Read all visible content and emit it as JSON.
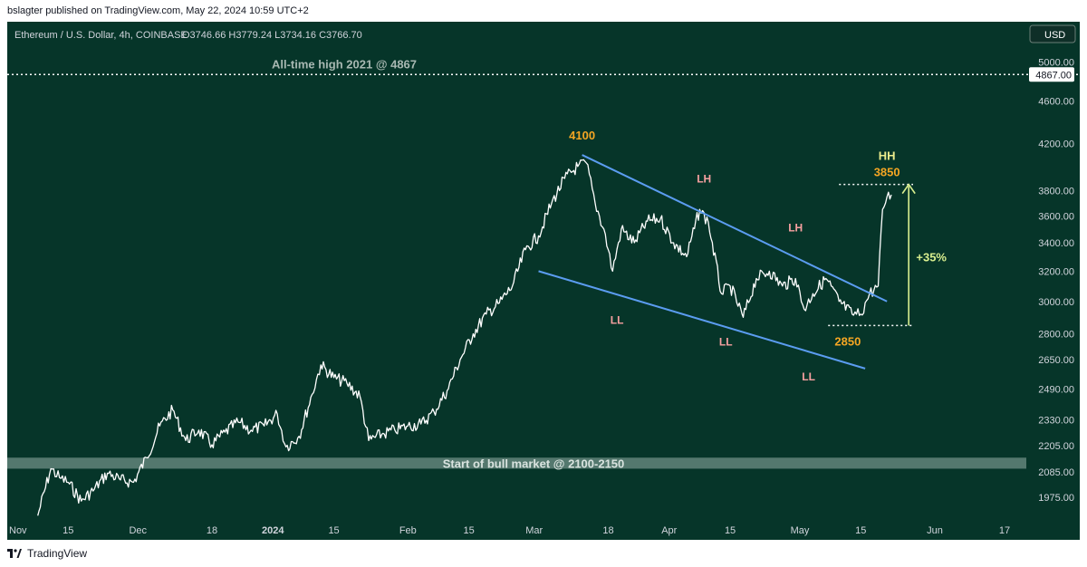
{
  "publisher": "bslagter published on TradingView.com, May 22, 2024 10:59 UTC+2",
  "header": {
    "symbol": "Ethereum / U.S. Dollar, 4h, COINBASE",
    "ohlc": "O3746.66  H3779.24  L3734.16  C3766.70",
    "currency": "USD"
  },
  "footer": {
    "brand": "TradingView"
  },
  "colors": {
    "background": "#063529",
    "candles": "#ffffff",
    "trendline": "#5b9cf0",
    "price_label": "#f5a623",
    "swing_label": "#f6a0a0",
    "hh_label": "#ecec8c",
    "measure": "#d9ef8f",
    "zone": "#6f8f85"
  },
  "chart_data": {
    "type": "line",
    "title": "Ethereum / U.S. Dollar, 4h, COINBASE",
    "y_scale": "log",
    "ylim": [
      1890,
      5200
    ],
    "y_ticks": [
      "5000.00",
      "4600.00",
      "4200.00",
      "3800.00",
      "3600.00",
      "3400.00",
      "3200.00",
      "3000.00",
      "2800.00",
      "2650.00",
      "2490.00",
      "2330.00",
      "2205.00",
      "2085.00",
      "1975.00"
    ],
    "x_ticks": [
      "Nov",
      "15",
      "Dec",
      "18",
      "2024",
      "15",
      "Feb",
      "15",
      "Mar",
      "18",
      "Apr",
      "15",
      "May",
      "15",
      "Jun",
      "17"
    ],
    "x_range": [
      "2023-11-01",
      "2024-06-22"
    ],
    "series": [
      {
        "points": [
          [
            "2023-11-08",
            1900
          ],
          [
            "2023-11-11",
            2100
          ],
          [
            "2023-11-13",
            2060
          ],
          [
            "2023-11-15",
            2040
          ],
          [
            "2023-11-18",
            1960
          ],
          [
            "2023-11-21",
            2010
          ],
          [
            "2023-11-24",
            2080
          ],
          [
            "2023-11-27",
            2050
          ],
          [
            "2023-11-30",
            2040
          ],
          [
            "2023-12-03",
            2150
          ],
          [
            "2023-12-06",
            2300
          ],
          [
            "2023-12-09",
            2380
          ],
          [
            "2023-12-12",
            2230
          ],
          [
            "2023-12-15",
            2280
          ],
          [
            "2023-12-18",
            2210
          ],
          [
            "2023-12-21",
            2270
          ],
          [
            "2023-12-24",
            2320
          ],
          [
            "2023-12-27",
            2280
          ],
          [
            "2023-12-30",
            2300
          ],
          [
            "2024-01-02",
            2360
          ],
          [
            "2024-01-04",
            2200
          ],
          [
            "2024-01-07",
            2250
          ],
          [
            "2024-01-10",
            2460
          ],
          [
            "2024-01-12",
            2620
          ],
          [
            "2024-01-15",
            2550
          ],
          [
            "2024-01-18",
            2520
          ],
          [
            "2024-01-21",
            2450
          ],
          [
            "2024-01-23",
            2230
          ],
          [
            "2024-01-26",
            2260
          ],
          [
            "2024-01-29",
            2280
          ],
          [
            "2024-02-01",
            2300
          ],
          [
            "2024-02-04",
            2310
          ],
          [
            "2024-02-07",
            2370
          ],
          [
            "2024-02-10",
            2480
          ],
          [
            "2024-02-13",
            2650
          ],
          [
            "2024-02-16",
            2800
          ],
          [
            "2024-02-19",
            2920
          ],
          [
            "2024-02-22",
            2990
          ],
          [
            "2024-02-25",
            3100
          ],
          [
            "2024-02-28",
            3350
          ],
          [
            "2024-03-02",
            3450
          ],
          [
            "2024-03-05",
            3700
          ],
          [
            "2024-03-08",
            3900
          ],
          [
            "2024-03-11",
            4000
          ],
          [
            "2024-03-13",
            4030
          ],
          [
            "2024-03-15",
            3700
          ],
          [
            "2024-03-17",
            3500
          ],
          [
            "2024-03-19",
            3200
          ],
          [
            "2024-03-21",
            3500
          ],
          [
            "2024-03-24",
            3400
          ],
          [
            "2024-03-27",
            3560
          ],
          [
            "2024-03-30",
            3580
          ],
          [
            "2024-04-02",
            3400
          ],
          [
            "2024-04-05",
            3300
          ],
          [
            "2024-04-08",
            3650
          ],
          [
            "2024-04-10",
            3550
          ],
          [
            "2024-04-13",
            3050
          ],
          [
            "2024-04-15",
            3100
          ],
          [
            "2024-04-18",
            2900
          ],
          [
            "2024-04-21",
            3150
          ],
          [
            "2024-04-24",
            3200
          ],
          [
            "2024-04-27",
            3100
          ],
          [
            "2024-04-30",
            3150
          ],
          [
            "2024-05-02",
            2950
          ],
          [
            "2024-05-04",
            3050
          ],
          [
            "2024-05-07",
            3150
          ],
          [
            "2024-05-10",
            3000
          ],
          [
            "2024-05-13",
            2920
          ],
          [
            "2024-05-15",
            2920
          ],
          [
            "2024-05-17",
            3050
          ],
          [
            "2024-05-19",
            3100
          ],
          [
            "2024-05-20",
            3650
          ],
          [
            "2024-05-21",
            3750
          ],
          [
            "2024-05-22",
            3766.7
          ]
        ]
      }
    ],
    "lines": [
      {
        "name": "All-time high 2021 @ 4867",
        "y": 4867
      },
      {
        "name": "upper-trendline",
        "from": [
          "2024-03-12",
          4100
        ],
        "to": [
          "2024-05-21",
          3000
        ]
      },
      {
        "name": "lower-trendline",
        "from": [
          "2024-03-02",
          3200
        ],
        "to": [
          "2024-05-16",
          2600
        ]
      }
    ],
    "zones": [
      {
        "name": "Start of bull market @ 2100-2150",
        "low": 2100,
        "high": 2150
      }
    ],
    "price_scale_label": "4867.00",
    "annotations": [
      {
        "text": "All-time high 2021 @ 4867"
      },
      {
        "text": "Start of bull market @ 2100-2150"
      },
      {
        "text": "4100"
      },
      {
        "text": "LH"
      },
      {
        "text": "LH"
      },
      {
        "text": "LL"
      },
      {
        "text": "LL"
      },
      {
        "text": "LL"
      },
      {
        "text": "HH"
      },
      {
        "text": "3850"
      },
      {
        "text": "2850"
      },
      {
        "text": "+35%"
      }
    ]
  }
}
